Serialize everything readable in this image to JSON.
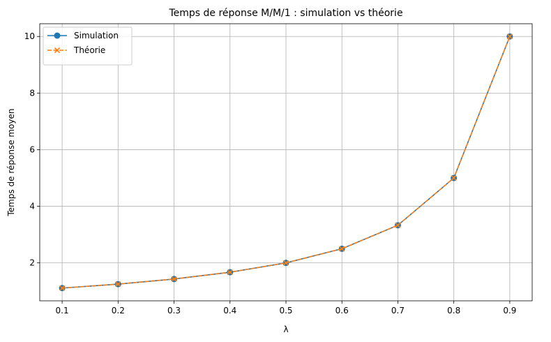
{
  "chart_data": {
    "type": "line",
    "title": "Temps de réponse M/M/1 : simulation vs théorie",
    "xlabel": "λ",
    "ylabel": "Temps de réponse moyen",
    "x": [
      0.1,
      0.2,
      0.3,
      0.4,
      0.5,
      0.6,
      0.7,
      0.8,
      0.9
    ],
    "xlim": [
      0.06,
      0.94
    ],
    "ylim": [
      0.66,
      10.45
    ],
    "xticks": [
      0.1,
      0.2,
      0.3,
      0.4,
      0.5,
      0.6,
      0.7,
      0.8,
      0.9
    ],
    "xtick_labels": [
      "0.1",
      "0.2",
      "0.3",
      "0.4",
      "0.5",
      "0.6",
      "0.7",
      "0.8",
      "0.9"
    ],
    "yticks": [
      2,
      4,
      6,
      8,
      10
    ],
    "ytick_labels": [
      "2",
      "4",
      "6",
      "8",
      "10"
    ],
    "grid": true,
    "legend_position": "top-left",
    "series": [
      {
        "name": "Simulation",
        "color": "#1f77b4",
        "marker": "circle",
        "linestyle": "solid",
        "values": [
          1.11,
          1.25,
          1.43,
          1.67,
          2.0,
          2.5,
          3.33,
          5.0,
          10.0
        ]
      },
      {
        "name": "Théorie",
        "color": "#ff7f0e",
        "marker": "x",
        "linestyle": "dashed",
        "values": [
          1.11,
          1.25,
          1.43,
          1.67,
          2.0,
          2.5,
          3.33,
          5.0,
          10.0
        ]
      }
    ]
  }
}
